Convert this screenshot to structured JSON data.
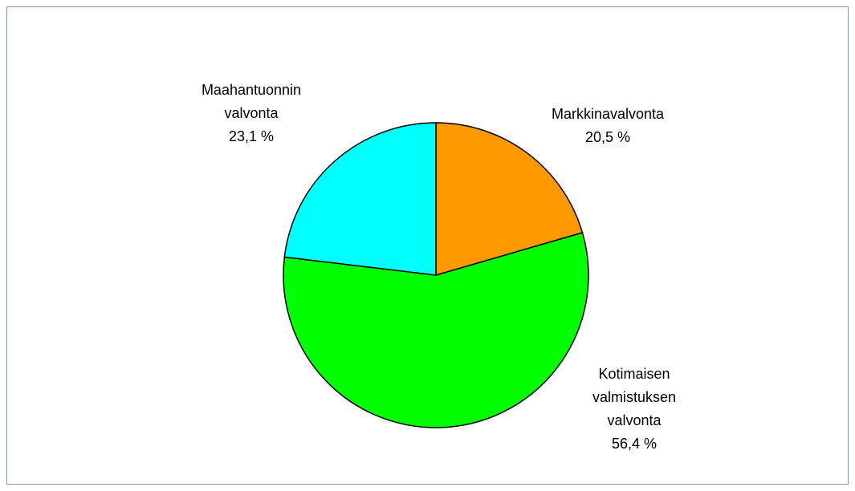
{
  "chart_data": {
    "type": "pie",
    "categories": [
      "Markkinavalvonta",
      "Kotimaisen valmistuksen valvonta",
      "Maahantuonnin valvonta"
    ],
    "values": [
      20.5,
      56.4,
      23.1
    ],
    "value_labels": [
      "20,5 %",
      "56,4 %",
      "23,1 %"
    ],
    "colors": [
      "#ff9900",
      "#00ff00",
      "#00ffff"
    ]
  }
}
